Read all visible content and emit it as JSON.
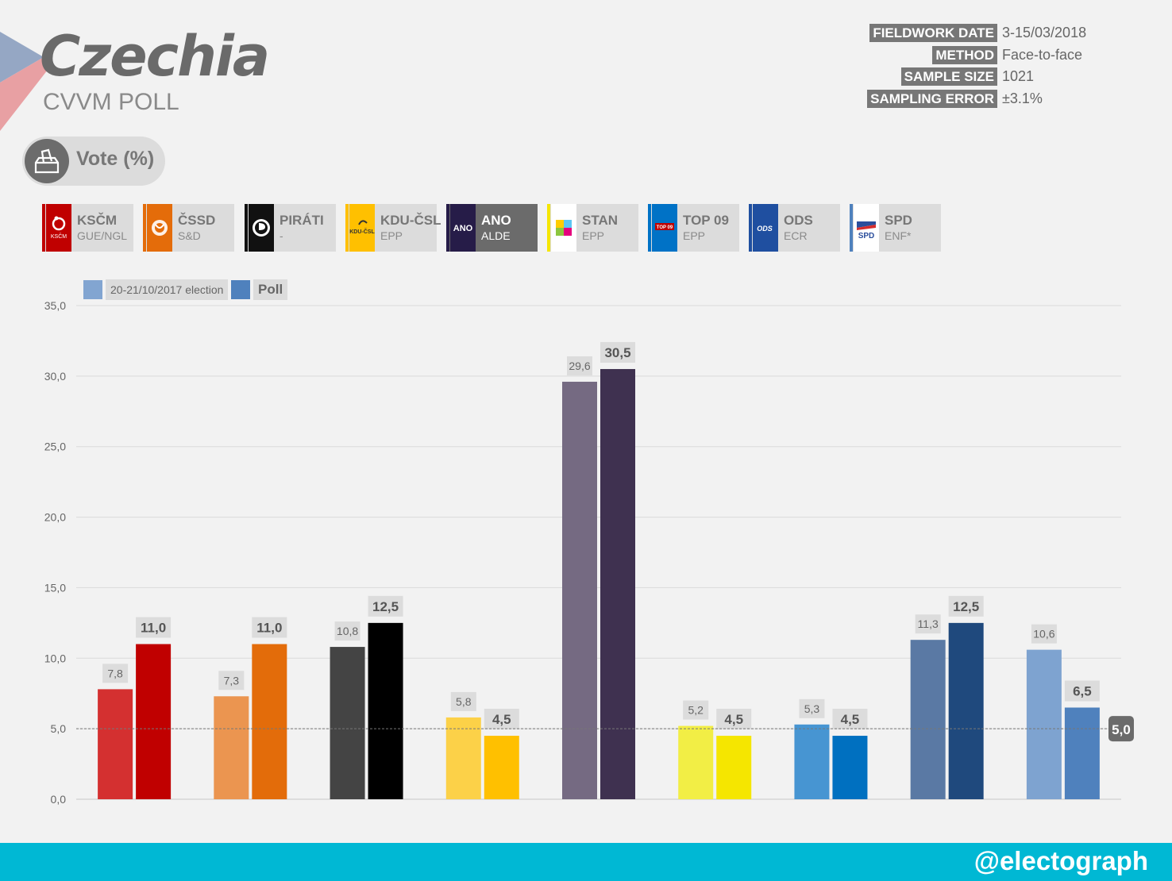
{
  "header": {
    "country": "Czechia",
    "pollster": "CVVM POLL",
    "metric_label": "Vote (%)"
  },
  "meta": [
    {
      "label": "FIELDWORK DATE",
      "value": "3-15/03/2018"
    },
    {
      "label": "METHOD",
      "value": "Face-to-face"
    },
    {
      "label": "SAMPLE SIZE",
      "value": "1021"
    },
    {
      "label": "SAMPLING ERROR",
      "value": "±3.1%"
    }
  ],
  "parties": [
    {
      "name": "KSČM",
      "group": "GUE/NGL",
      "color": "#c00000",
      "logo_text": "KSČM",
      "icon": "kscm-logo"
    },
    {
      "name": "ČSSD",
      "group": "S&D",
      "color": "#e46c0a",
      "logo_text": "",
      "icon": "cssd-logo"
    },
    {
      "name": "PIRÁTI",
      "group": "-",
      "color": "#111111",
      "logo_text": "",
      "icon": "pirati-logo"
    },
    {
      "name": "KDU-ČSL",
      "group": "EPP",
      "color": "#ffc000",
      "logo_text": "KDU-ČSL",
      "icon": "kdu-csl-logo"
    },
    {
      "name": "ANO",
      "group": "ALDE",
      "color": "#261c48",
      "logo_text": "ANO",
      "icon": "ano-logo"
    },
    {
      "name": "STAN",
      "group": "EPP",
      "color": "#f5e600",
      "logo_text": "",
      "icon": "stan-logo"
    },
    {
      "name": "TOP 09",
      "group": "EPP",
      "color": "#0072c6",
      "logo_text": "TOP 09",
      "icon": "top09-logo"
    },
    {
      "name": "ODS",
      "group": "ECR",
      "color": "#1f4fa0",
      "logo_text": "ODS",
      "icon": "ods-logo"
    },
    {
      "name": "SPD",
      "group": "ENF*",
      "color": "#4f81bd",
      "logo_text": "SPD",
      "icon": "spd-logo"
    }
  ],
  "footer": {
    "handle": "@electograph"
  },
  "chart_data": {
    "type": "bar",
    "categories": [
      "KSČM",
      "ČSSD",
      "PIRÁTI",
      "KDU-ČSL",
      "ANO",
      "STAN",
      "TOP 09",
      "ODS",
      "SPD"
    ],
    "series": [
      {
        "name": "20-21/10/2017 election",
        "values": [
          7.8,
          7.3,
          10.8,
          5.8,
          29.6,
          5.2,
          5.3,
          11.3,
          10.6
        ],
        "labels": [
          "7,8",
          "7,3",
          "10,8",
          "5,8",
          "29,6",
          "5,2",
          "5,3",
          "11,3",
          "10,6"
        ],
        "colors": [
          "#d43030",
          "#eb9550",
          "#444444",
          "#fcd148",
          "#756a82",
          "#f2ee45",
          "#4795d2",
          "#5a79a4",
          "#7ea3d0"
        ]
      },
      {
        "name": "Poll",
        "values": [
          11.0,
          11.0,
          12.5,
          4.5,
          30.5,
          4.5,
          4.5,
          12.5,
          6.5
        ],
        "labels": [
          "11,0",
          "11,0",
          "12,5",
          "4,5",
          "30,5",
          "4,5",
          "4,5",
          "12,5",
          "6,5"
        ],
        "colors": [
          "#c00000",
          "#e36c0a",
          "#000000",
          "#ffc000",
          "#3f3150",
          "#f5e600",
          "#0070c0",
          "#1f497d",
          "#4f81bd"
        ]
      }
    ],
    "legend_colors": [
      "#82a5d1",
      "#4f81bd"
    ],
    "ylim": [
      0,
      35
    ],
    "yticks": [
      "0,0",
      "5,0",
      "10,0",
      "15,0",
      "20,0",
      "25,0",
      "30,0",
      "35,0"
    ],
    "ytick_values": [
      0,
      5,
      10,
      15,
      20,
      25,
      30,
      35
    ],
    "threshold": {
      "value": 5.0,
      "label": "5,0"
    },
    "grid": true
  }
}
